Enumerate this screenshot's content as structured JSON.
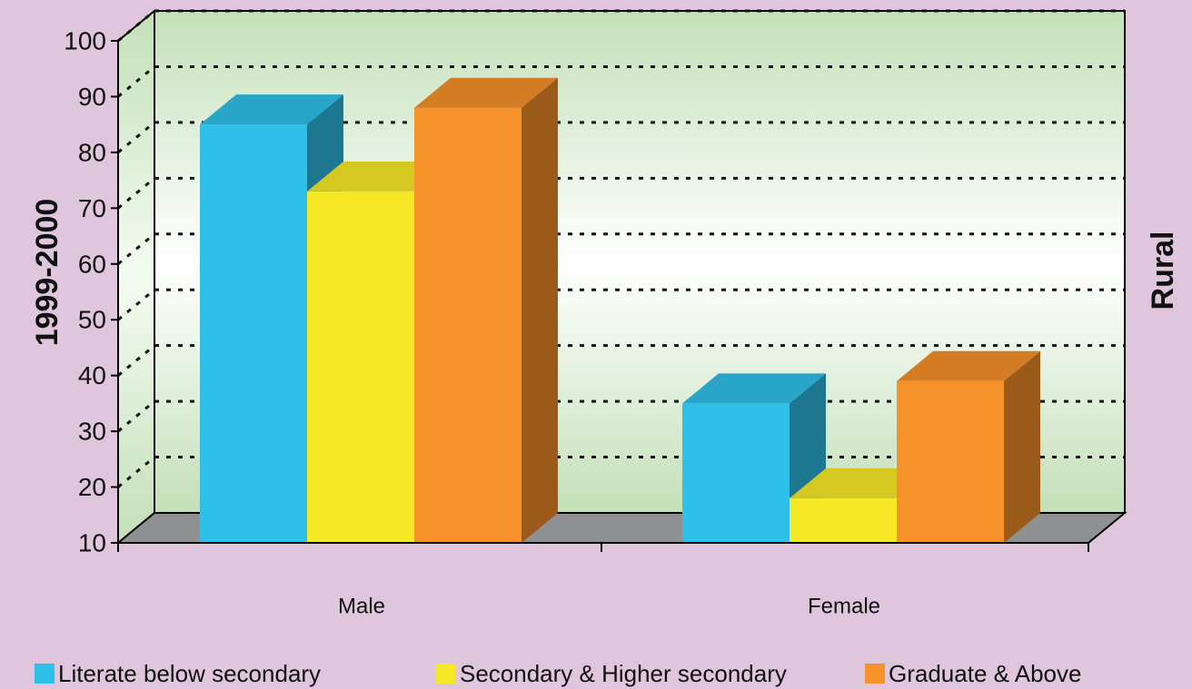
{
  "chart_data": {
    "type": "bar",
    "categories": [
      "Male",
      "Female"
    ],
    "series": [
      {
        "name": "Literate below secondary",
        "values": [
          85,
          35
        ],
        "color": "#2ec0e8"
      },
      {
        "name": "Secondary & Higher secondary",
        "values": [
          73,
          18
        ],
        "color": "#f7e826"
      },
      {
        "name": "Graduate & Above",
        "values": [
          88,
          39
        ],
        "color": "#f7912a"
      }
    ],
    "ylim": [
      10,
      100
    ],
    "yticks": [
      10,
      20,
      30,
      40,
      50,
      60,
      70,
      80,
      90,
      100
    ],
    "ylabel": "1999-2000",
    "right_label": "Rural",
    "grid": true,
    "legend_position": "bottom"
  }
}
